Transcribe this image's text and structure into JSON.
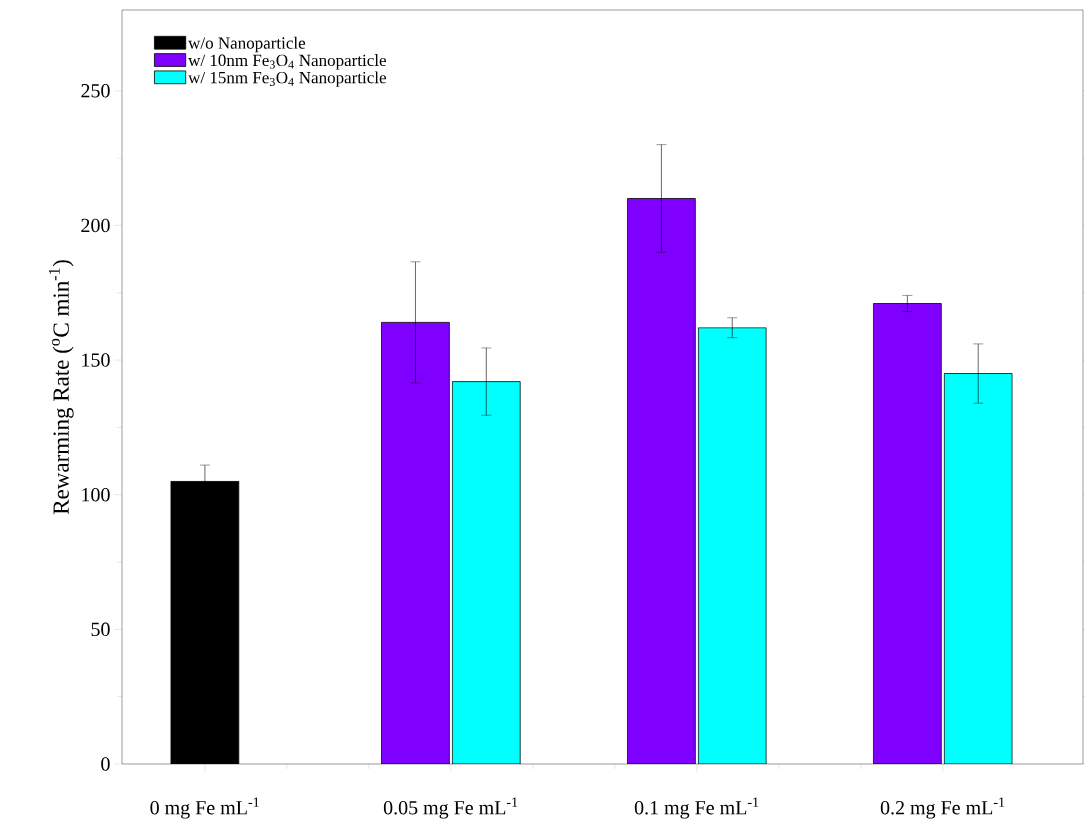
{
  "chart_data": {
    "type": "bar",
    "categories": [
      "0 mg Fe mL$^{-1}$",
      "0.05 mg Fe mL$^{-1}$",
      "0.1 mg Fe mL$^{-1}$",
      "0.2 mg Fe mL$^{-1}$"
    ],
    "ylabel": "Rewarming Rate ($^{o}$C min$^{-1}$)",
    "series": [
      {
        "name": "w/o Nanoparticle",
        "color": "#000000",
        "values": [
          105,
          null,
          null,
          null
        ],
        "errors": [
          6,
          null,
          null,
          null
        ]
      },
      {
        "name": "w/ 10nm Fe$_{3}$O$_{4}$ Nanoparticle",
        "color": "#7f00ff",
        "values": [
          null,
          164,
          210,
          171
        ],
        "errors": [
          null,
          22.5,
          20,
          3
        ]
      },
      {
        "name": "w/ 15nm Fe$_{3}$O$_{4}$ Nanoparticle",
        "color": "#00ffff",
        "values": [
          null,
          142,
          162,
          145
        ],
        "errors": [
          null,
          12.5,
          3.7,
          11
        ]
      }
    ],
    "ylim": [
      0,
      280
    ],
    "yticks": [
      0,
      50,
      100,
      150,
      200,
      250
    ],
    "legend": "top left"
  }
}
